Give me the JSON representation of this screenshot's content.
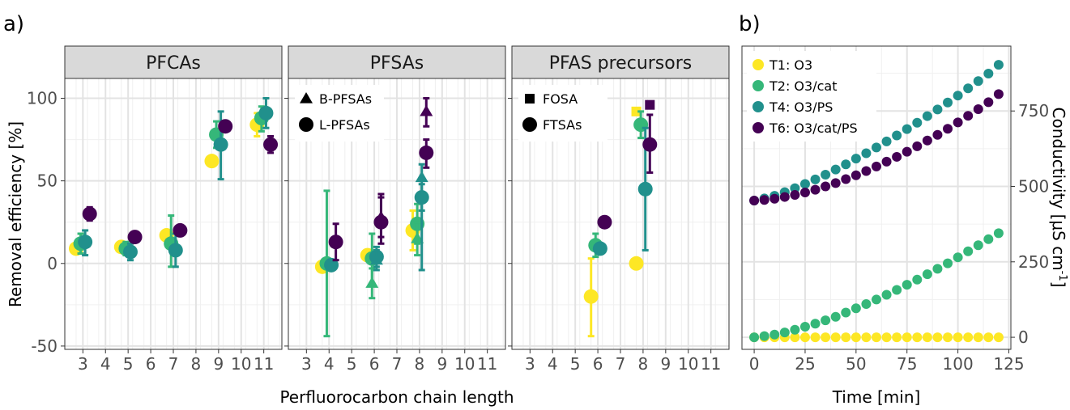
{
  "panel_labels": [
    "a)",
    "b)"
  ],
  "chart_data": [
    {
      "type": "scatter",
      "facets": [
        "PFCAs",
        "PFSAs",
        "PFAS precursors"
      ],
      "xlabel": "Perfluorocarbon chain length",
      "ylabel": "Removal efficiency [%]",
      "xlim": [
        2.2,
        11.8
      ],
      "ylim": [
        -52,
        112
      ],
      "xticks": [
        3,
        4,
        5,
        6,
        7,
        8,
        9,
        10,
        11
      ],
      "yticks": [
        -50,
        0,
        50,
        100
      ],
      "facet_legends": [
        [],
        [
          {
            "label": "B-PFSAs",
            "shape": "triangle"
          },
          {
            "label": "L-PFSAs",
            "shape": "circle"
          }
        ],
        [
          {
            "label": "FOSA",
            "shape": "square"
          },
          {
            "label": "FTSAs",
            "shape": "circle"
          }
        ]
      ],
      "series": [
        {
          "name": "T1: O3",
          "color": "#fde725",
          "points": [
            {
              "facet": 0,
              "x": 3,
              "y": 9,
              "lo": 9,
              "hi": 9,
              "shape": "circle"
            },
            {
              "facet": 0,
              "x": 5,
              "y": 10,
              "lo": 10,
              "hi": 10,
              "shape": "circle"
            },
            {
              "facet": 0,
              "x": 7,
              "y": 17,
              "lo": 17,
              "hi": 17,
              "shape": "circle"
            },
            {
              "facet": 0,
              "x": 9,
              "y": 62,
              "lo": 62,
              "hi": 62,
              "shape": "circle"
            },
            {
              "facet": 0,
              "x": 11,
              "y": 84,
              "lo": 77,
              "hi": 91,
              "shape": "circle"
            },
            {
              "facet": 1,
              "x": 4,
              "y": -2,
              "lo": -2,
              "hi": -2,
              "shape": "circle"
            },
            {
              "facet": 1,
              "x": 6,
              "y": 5,
              "lo": 5,
              "hi": 5,
              "shape": "circle"
            },
            {
              "facet": 1,
              "x": 8,
              "y": 20,
              "lo": 8,
              "hi": 32,
              "shape": "circle"
            },
            {
              "facet": 2,
              "x": 6,
              "y": -20,
              "lo": -44,
              "hi": 3,
              "shape": "circle"
            },
            {
              "facet": 2,
              "x": 8,
              "y": 0,
              "lo": 0,
              "hi": 0,
              "shape": "circle"
            },
            {
              "facet": 2,
              "x": 8,
              "y": 92,
              "lo": 92,
              "hi": 92,
              "shape": "square"
            }
          ]
        },
        {
          "name": "T2: O3/cat",
          "color": "#35b779",
          "points": [
            {
              "facet": 0,
              "x": 3,
              "y": 12,
              "lo": 6,
              "hi": 18,
              "shape": "circle"
            },
            {
              "facet": 0,
              "x": 5,
              "y": 9,
              "lo": 5,
              "hi": 13,
              "shape": "circle"
            },
            {
              "facet": 0,
              "x": 7,
              "y": 12,
              "lo": -2,
              "hi": 29,
              "shape": "circle"
            },
            {
              "facet": 0,
              "x": 9,
              "y": 78,
              "lo": 70,
              "hi": 86,
              "shape": "circle"
            },
            {
              "facet": 0,
              "x": 11,
              "y": 88,
              "lo": 80,
              "hi": 95,
              "shape": "circle"
            },
            {
              "facet": 1,
              "x": 4,
              "y": 0,
              "lo": -44,
              "hi": 44,
              "shape": "circle"
            },
            {
              "facet": 1,
              "x": 6,
              "y": 3,
              "lo": -12,
              "hi": 18,
              "shape": "circle"
            },
            {
              "facet": 1,
              "x": 8,
              "y": 24,
              "lo": 12,
              "hi": 36,
              "shape": "circle"
            },
            {
              "facet": 1,
              "x": 6,
              "y": -12,
              "lo": -21,
              "hi": -3,
              "shape": "triangle"
            },
            {
              "facet": 1,
              "x": 8,
              "y": 15,
              "lo": 5,
              "hi": 25,
              "shape": "triangle"
            },
            {
              "facet": 2,
              "x": 6,
              "y": 11,
              "lo": 4,
              "hi": 18,
              "shape": "circle"
            },
            {
              "facet": 2,
              "x": 8,
              "y": 84,
              "lo": 76,
              "hi": 92,
              "shape": "circle"
            }
          ]
        },
        {
          "name": "T4: O3/PS",
          "color": "#21908c",
          "points": [
            {
              "facet": 0,
              "x": 3,
              "y": 13,
              "lo": 5,
              "hi": 20,
              "shape": "circle"
            },
            {
              "facet": 0,
              "x": 5,
              "y": 7,
              "lo": 2,
              "hi": 12,
              "shape": "circle"
            },
            {
              "facet": 0,
              "x": 7,
              "y": 8,
              "lo": -2,
              "hi": 18,
              "shape": "circle"
            },
            {
              "facet": 0,
              "x": 9,
              "y": 72,
              "lo": 51,
              "hi": 92,
              "shape": "circle"
            },
            {
              "facet": 0,
              "x": 11,
              "y": 91,
              "lo": 82,
              "hi": 100,
              "shape": "circle"
            },
            {
              "facet": 1,
              "x": 4,
              "y": -1,
              "lo": -3,
              "hi": 1,
              "shape": "circle"
            },
            {
              "facet": 1,
              "x": 6,
              "y": 4,
              "lo": -2,
              "hi": 10,
              "shape": "circle"
            },
            {
              "facet": 1,
              "x": 8,
              "y": 40,
              "lo": 32,
              "hi": 48,
              "shape": "circle"
            },
            {
              "facet": 1,
              "x": 6,
              "y": 2,
              "lo": -4,
              "hi": 8,
              "shape": "triangle"
            },
            {
              "facet": 1,
              "x": 8,
              "y": 52,
              "lo": -4,
              "hi": 60,
              "shape": "triangle"
            },
            {
              "facet": 2,
              "x": 6,
              "y": 9,
              "lo": 6,
              "hi": 12,
              "shape": "circle"
            },
            {
              "facet": 2,
              "x": 8,
              "y": 45,
              "lo": 8,
              "hi": 82,
              "shape": "circle"
            }
          ]
        },
        {
          "name": "T6: O3/cat/PS",
          "color": "#440154",
          "points": [
            {
              "facet": 0,
              "x": 3,
              "y": 30,
              "lo": 26,
              "hi": 34,
              "shape": "circle"
            },
            {
              "facet": 0,
              "x": 5,
              "y": 16,
              "lo": 16,
              "hi": 16,
              "shape": "circle"
            },
            {
              "facet": 0,
              "x": 7,
              "y": 20,
              "lo": 20,
              "hi": 20,
              "shape": "circle"
            },
            {
              "facet": 0,
              "x": 9,
              "y": 83,
              "lo": 83,
              "hi": 83,
              "shape": "circle"
            },
            {
              "facet": 0,
              "x": 11,
              "y": 72,
              "lo": 67,
              "hi": 77,
              "shape": "circle"
            },
            {
              "facet": 1,
              "x": 4,
              "y": 13,
              "lo": 2,
              "hi": 24,
              "shape": "circle"
            },
            {
              "facet": 1,
              "x": 6,
              "y": 25,
              "lo": 12,
              "hi": 42,
              "shape": "circle"
            },
            {
              "facet": 1,
              "x": 8,
              "y": 67,
              "lo": 58,
              "hi": 75,
              "shape": "circle"
            },
            {
              "facet": 1,
              "x": 6,
              "y": 28,
              "lo": 16,
              "hi": 40,
              "shape": "triangle"
            },
            {
              "facet": 1,
              "x": 8,
              "y": 92,
              "lo": 83,
              "hi": 100,
              "shape": "triangle"
            },
            {
              "facet": 2,
              "x": 6,
              "y": 25,
              "lo": 25,
              "hi": 25,
              "shape": "circle"
            },
            {
              "facet": 2,
              "x": 8,
              "y": 72,
              "lo": 55,
              "hi": 90,
              "shape": "circle"
            },
            {
              "facet": 2,
              "x": 8,
              "y": 96,
              "lo": 96,
              "hi": 96,
              "shape": "square"
            }
          ]
        }
      ]
    },
    {
      "type": "scatter",
      "xlabel": "Time [min]",
      "ylabel": "Conductivity [μS cm⁻¹]",
      "ylabel_parts": [
        "Conductivity [μS cm",
        "-1",
        "]"
      ],
      "xlim": [
        -6,
        126
      ],
      "ylim": [
        -40,
        965
      ],
      "xticks": [
        0,
        25,
        50,
        75,
        100,
        125
      ],
      "yticks": [
        0,
        250,
        500,
        750
      ],
      "legend": "top-left",
      "x": [
        0,
        5,
        10,
        15,
        20,
        25,
        30,
        35,
        40,
        45,
        50,
        55,
        60,
        65,
        70,
        75,
        80,
        85,
        90,
        95,
        100,
        105,
        110,
        115,
        120
      ],
      "series": [
        {
          "name": "T1: O3",
          "color": "#fde725",
          "values": [
            0,
            0,
            0,
            0,
            0,
            0,
            0,
            0,
            0,
            0,
            0,
            0,
            0,
            0,
            0,
            0,
            0,
            0,
            0,
            0,
            0,
            0,
            0,
            0,
            0
          ]
        },
        {
          "name": "T2: O3/cat",
          "color": "#35b779",
          "values": [
            0,
            4,
            9,
            16,
            25,
            35,
            45,
            56,
            68,
            82,
            96,
            110,
            125,
            141,
            157,
            174,
            191,
            209,
            227,
            245,
            265,
            285,
            305,
            325,
            345
          ]
        },
        {
          "name": "T4: O3/PS",
          "color": "#21908c",
          "values": [
            453,
            460,
            469,
            481,
            494,
            508,
            523,
            539,
            556,
            573,
            592,
            610,
            629,
            649,
            669,
            690,
            711,
            733,
            755,
            778,
            801,
            825,
            849,
            874,
            903
          ]
        },
        {
          "name": "T6: O3/cat/PS",
          "color": "#440154",
          "values": [
            453,
            455,
            459,
            465,
            472,
            480,
            489,
            500,
            511,
            524,
            537,
            551,
            566,
            582,
            598,
            615,
            633,
            652,
            671,
            691,
            712,
            734,
            756,
            779,
            806
          ]
        }
      ]
    }
  ]
}
